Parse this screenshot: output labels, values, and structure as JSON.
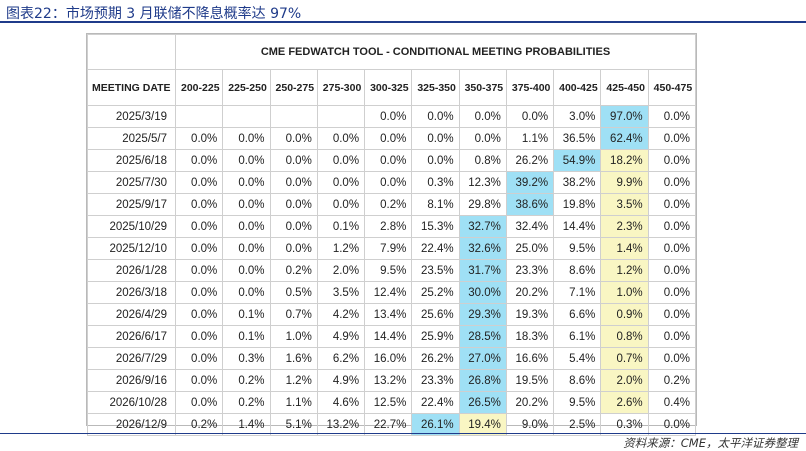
{
  "caption": "图表22：市场预期 3 月联储不降息概率达 97%",
  "source": "资料来源：CME，太平洋证券整理",
  "table": {
    "title": "CME FEDWATCH TOOL - CONDITIONAL MEETING PROBABILITIES",
    "date_header": "MEETING DATE",
    "columns": [
      "200-225",
      "225-250",
      "250-275",
      "275-300",
      "300-325",
      "325-350",
      "350-375",
      "375-400",
      "400-425",
      "425-450",
      "450-475"
    ],
    "highlight_colors": {
      "max": "#9fe0f5",
      "second": "#f9f6c3"
    },
    "rows": [
      {
        "date": "2025/3/19",
        "cells": [
          "",
          "",
          "",
          "",
          "0.0%",
          "0.0%",
          "0.0%",
          "0.0%",
          "3.0%",
          "97.0%",
          "0.0%"
        ],
        "blue": 9,
        "yellow": -1
      },
      {
        "date": "2025/5/7",
        "cells": [
          "0.0%",
          "0.0%",
          "0.0%",
          "0.0%",
          "0.0%",
          "0.0%",
          "0.0%",
          "1.1%",
          "36.5%",
          "62.4%",
          "0.0%"
        ],
        "blue": 9,
        "yellow": -1
      },
      {
        "date": "2025/6/18",
        "cells": [
          "0.0%",
          "0.0%",
          "0.0%",
          "0.0%",
          "0.0%",
          "0.0%",
          "0.8%",
          "26.2%",
          "54.9%",
          "18.2%",
          "0.0%"
        ],
        "blue": 8,
        "yellow": 9
      },
      {
        "date": "2025/7/30",
        "cells": [
          "0.0%",
          "0.0%",
          "0.0%",
          "0.0%",
          "0.0%",
          "0.3%",
          "12.3%",
          "39.2%",
          "38.2%",
          "9.9%",
          "0.0%"
        ],
        "blue": 7,
        "yellow": 9
      },
      {
        "date": "2025/9/17",
        "cells": [
          "0.0%",
          "0.0%",
          "0.0%",
          "0.0%",
          "0.2%",
          "8.1%",
          "29.8%",
          "38.6%",
          "19.8%",
          "3.5%",
          "0.0%"
        ],
        "blue": 7,
        "yellow": 9
      },
      {
        "date": "2025/10/29",
        "cells": [
          "0.0%",
          "0.0%",
          "0.0%",
          "0.1%",
          "2.8%",
          "15.3%",
          "32.7%",
          "32.4%",
          "14.4%",
          "2.3%",
          "0.0%"
        ],
        "blue": 6,
        "yellow": 9
      },
      {
        "date": "2025/12/10",
        "cells": [
          "0.0%",
          "0.0%",
          "0.0%",
          "1.2%",
          "7.9%",
          "22.4%",
          "32.6%",
          "25.0%",
          "9.5%",
          "1.4%",
          "0.0%"
        ],
        "blue": 6,
        "yellow": 9
      },
      {
        "date": "2026/1/28",
        "cells": [
          "0.0%",
          "0.0%",
          "0.2%",
          "2.0%",
          "9.5%",
          "23.5%",
          "31.7%",
          "23.3%",
          "8.6%",
          "1.2%",
          "0.0%"
        ],
        "blue": 6,
        "yellow": 9
      },
      {
        "date": "2026/3/18",
        "cells": [
          "0.0%",
          "0.0%",
          "0.5%",
          "3.5%",
          "12.4%",
          "25.2%",
          "30.0%",
          "20.2%",
          "7.1%",
          "1.0%",
          "0.0%"
        ],
        "blue": 6,
        "yellow": 9
      },
      {
        "date": "2026/4/29",
        "cells": [
          "0.0%",
          "0.1%",
          "0.7%",
          "4.2%",
          "13.4%",
          "25.6%",
          "29.3%",
          "19.3%",
          "6.6%",
          "0.9%",
          "0.0%"
        ],
        "blue": 6,
        "yellow": 9
      },
      {
        "date": "2026/6/17",
        "cells": [
          "0.0%",
          "0.1%",
          "1.0%",
          "4.9%",
          "14.4%",
          "25.9%",
          "28.5%",
          "18.3%",
          "6.1%",
          "0.8%",
          "0.0%"
        ],
        "blue": 6,
        "yellow": 9
      },
      {
        "date": "2026/7/29",
        "cells": [
          "0.0%",
          "0.3%",
          "1.6%",
          "6.2%",
          "16.0%",
          "26.2%",
          "27.0%",
          "16.6%",
          "5.4%",
          "0.7%",
          "0.0%"
        ],
        "blue": 6,
        "yellow": 9
      },
      {
        "date": "2026/9/16",
        "cells": [
          "0.0%",
          "0.2%",
          "1.2%",
          "4.9%",
          "13.2%",
          "23.3%",
          "26.8%",
          "19.5%",
          "8.6%",
          "2.0%",
          "0.2%"
        ],
        "blue": 6,
        "yellow": 9
      },
      {
        "date": "2026/10/28",
        "cells": [
          "0.0%",
          "0.2%",
          "1.1%",
          "4.6%",
          "12.5%",
          "22.4%",
          "26.5%",
          "20.2%",
          "9.5%",
          "2.6%",
          "0.4%"
        ],
        "blue": 6,
        "yellow": 9
      },
      {
        "date": "2026/12/9",
        "cells": [
          "0.2%",
          "1.4%",
          "5.1%",
          "13.2%",
          "22.7%",
          "26.1%",
          "19.4%",
          "9.0%",
          "2.5%",
          "0.3%",
          "0.0%"
        ],
        "blue": 5,
        "yellow": 6
      }
    ]
  }
}
